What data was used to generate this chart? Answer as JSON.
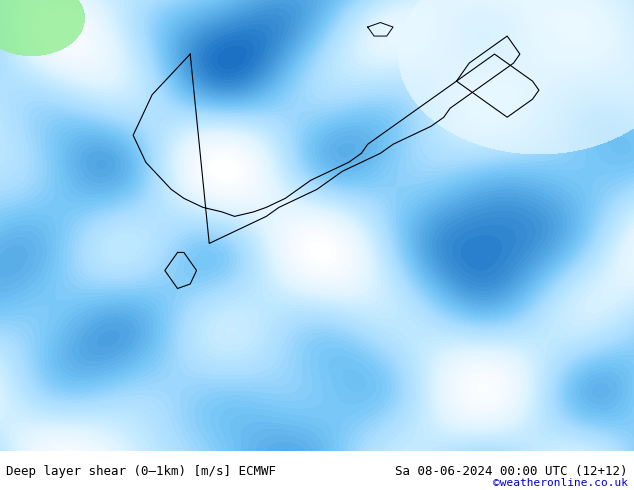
{
  "title_left": "Deep layer shear (0–1km) [m/s] ECMWF",
  "title_right": "Sa 08-06-2024 00:00 UTC (12+12)",
  "watermark": "©weatheronline.co.uk",
  "background_color": "#ffffff",
  "fig_width": 6.34,
  "fig_height": 4.9,
  "dpi": 100,
  "text_color": "#000000",
  "watermark_color": "#0000cc",
  "bottom_bar_color": "#c8e8ff",
  "map_bg_color": "#5aabee",
  "font_size_label": 9,
  "font_size_watermark": 8
}
